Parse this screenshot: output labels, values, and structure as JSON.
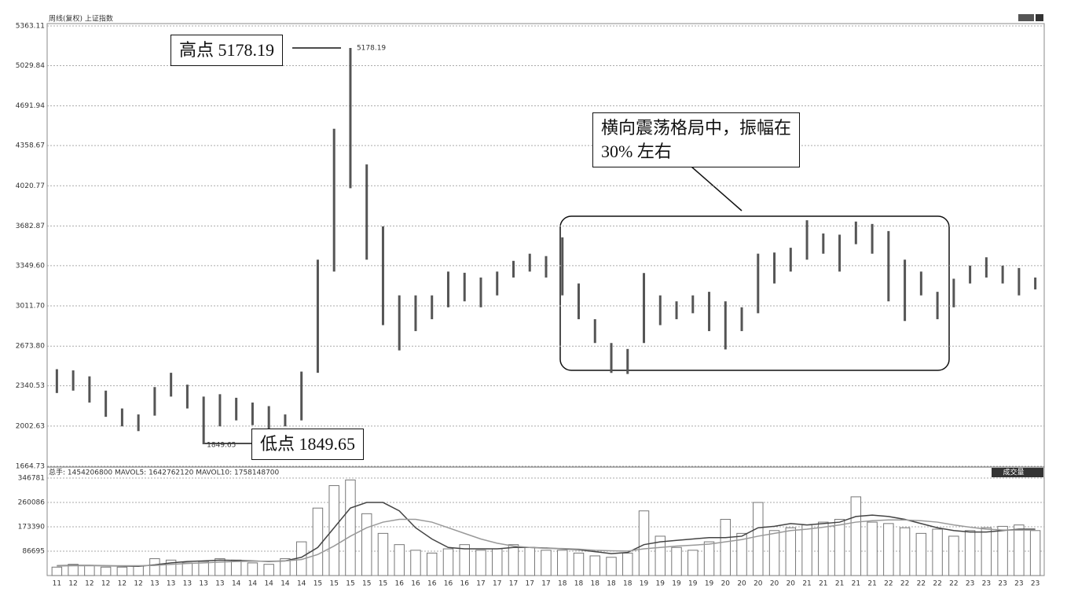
{
  "chart_data": [
    {
      "type": "hilo",
      "title": "周线(复权) 上证指数",
      "color": "#555555",
      "grid": true,
      "ylim": [
        1664.73,
        5363.11
      ],
      "yticks": [
        1664.73,
        2002.63,
        2340.53,
        {
          "value": 2673.8,
          "label": "2673.80"
        },
        {
          "value": 3011.7,
          "label": "3011.70"
        },
        {
          "value": 3349.6,
          "label": "3349.60"
        },
        3682.87,
        4020.77,
        4358.67,
        4691.94,
        5029.84,
        5363.11
      ],
      "high": [
        2480,
        2470,
        2420,
        2300,
        2150,
        2100,
        2330,
        2450,
        2350,
        2250,
        2270,
        2240,
        2200,
        2170,
        2100,
        2460,
        3400,
        4500,
        5178.19,
        4200,
        3680,
        3100,
        3100,
        3100,
        3300,
        3290,
        3250,
        3300,
        3390,
        3450,
        3430,
        3587,
        3200,
        2900,
        2700,
        2650,
        3288,
        3100,
        3050,
        3100,
        3130,
        3050,
        3000,
        3450,
        3460,
        3500,
        3731,
        3620,
        3610,
        3720,
        3700,
        3640,
        3400,
        3300,
        3130,
        3240,
        3350,
        3420,
        3350,
        3330,
        3250
      ],
      "low": [
        2280,
        2300,
        2200,
        2080,
        2000,
        1960,
        2090,
        2250,
        2150,
        1849.65,
        2000,
        2050,
        2010,
        1980,
        2000,
        2050,
        2450,
        3300,
        4000,
        3400,
        2850,
        2638,
        2800,
        2900,
        3000,
        3050,
        3000,
        3100,
        3250,
        3300,
        3250,
        3100,
        2900,
        2700,
        2449,
        2440,
        2700,
        2850,
        2900,
        2950,
        2800,
        2646,
        2800,
        2950,
        3200,
        3300,
        3400,
        3450,
        3300,
        3530,
        3450,
        3050,
        2885,
        3100,
        2900,
        3000,
        3200,
        3250,
        3200,
        3100,
        3150
      ],
      "annotations": [
        "高点 5178.19",
        "低点 1849.65",
        "横向震荡格局中，振幅在 30% 左右"
      ]
    },
    {
      "type": "volume",
      "title": "总手: 1454206800 MAVOL5: 1642762120 MAVOL10: 1758148700",
      "button": "成交量",
      "grid": true,
      "ylim": [
        0,
        346781
      ],
      "yticks": [
        86695,
        173390,
        260086,
        346781
      ],
      "categories": [
        "11",
        "12",
        "12",
        "12",
        "12",
        "12",
        "13",
        "13",
        "13",
        "13",
        "13",
        "14",
        "14",
        "14",
        "14",
        "14",
        "15",
        "15",
        "15",
        "15",
        "15",
        "16",
        "16",
        "16",
        "16",
        "16",
        "17",
        "17",
        "17",
        "17",
        "17",
        "18",
        "18",
        "18",
        "18",
        "18",
        "19",
        "19",
        "19",
        "19",
        "19",
        "20",
        "20",
        "20",
        "20",
        "20",
        "21",
        "21",
        "21",
        "21",
        "21",
        "22",
        "22",
        "22",
        "22",
        "22",
        "23",
        "23",
        "23",
        "23",
        "23"
      ],
      "series": [
        {
          "color": "#777777",
          "values": [
            30000,
            40000,
            35000,
            30000,
            30000,
            35000,
            60000,
            55000,
            45000,
            50000,
            60000,
            55000,
            45000,
            40000,
            60000,
            120000,
            240000,
            320000,
            340000,
            220000,
            150000,
            110000,
            90000,
            80000,
            95000,
            110000,
            90000,
            95000,
            110000,
            100000,
            90000,
            90000,
            80000,
            70000,
            65000,
            80000,
            230000,
            140000,
            100000,
            90000,
            120000,
            200000,
            150000,
            260000,
            160000,
            170000,
            180000,
            190000,
            200000,
            280000,
            190000,
            185000,
            170000,
            150000,
            165000,
            140000,
            160000,
            170000,
            175000,
            180000,
            160000
          ]
        },
        {
          "color": "#444444",
          "values": [
            35000,
            36000,
            36000,
            35000,
            34000,
            33000,
            38000,
            45000,
            50000,
            52000,
            55000,
            54000,
            52000,
            50000,
            52000,
            65000,
            100000,
            170000,
            240000,
            260000,
            260000,
            230000,
            170000,
            130000,
            100000,
            95000,
            95000,
            95000,
            100000,
            100000,
            98000,
            95000,
            92000,
            85000,
            78000,
            82000,
            110000,
            120000,
            125000,
            130000,
            135000,
            135000,
            140000,
            170000,
            175000,
            185000,
            180000,
            185000,
            190000,
            210000,
            215000,
            210000,
            200000,
            185000,
            170000,
            160000,
            155000,
            155000,
            160000,
            165000,
            165000
          ]
        },
        {
          "color": "#999999",
          "values": [
            34000,
            35000,
            35000,
            35000,
            35000,
            35000,
            36000,
            40000,
            43000,
            45000,
            48000,
            50000,
            51000,
            51000,
            52000,
            57000,
            75000,
            105000,
            140000,
            170000,
            190000,
            200000,
            200000,
            190000,
            170000,
            150000,
            130000,
            115000,
            105000,
            100000,
            97000,
            96000,
            94000,
            90000,
            88000,
            87000,
            95000,
            100000,
            105000,
            108000,
            112000,
            120000,
            128000,
            140000,
            150000,
            160000,
            165000,
            172000,
            180000,
            190000,
            195000,
            198000,
            198000,
            195000,
            190000,
            180000,
            172000,
            165000,
            162000,
            162000,
            162000
          ]
        }
      ]
    }
  ]
}
